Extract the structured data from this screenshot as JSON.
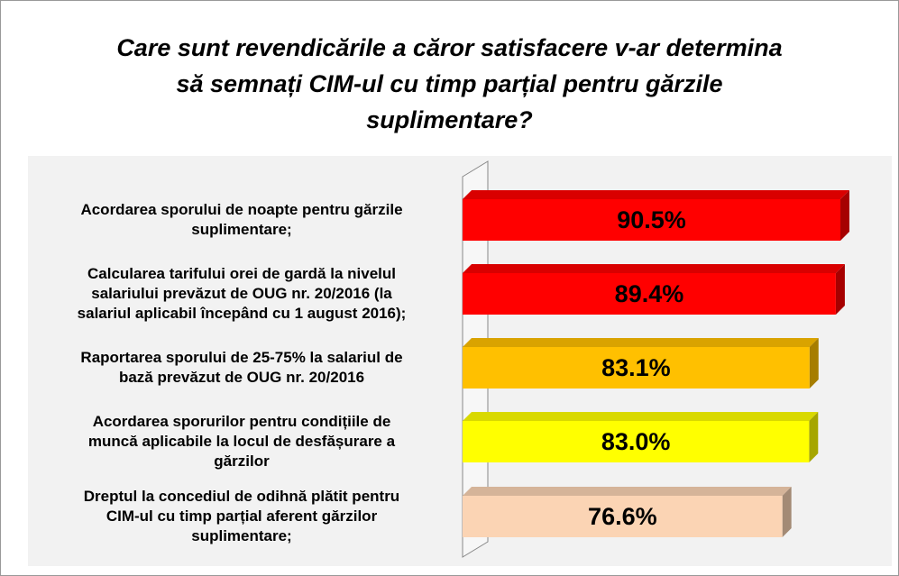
{
  "chart_data": {
    "type": "bar",
    "orientation": "horizontal",
    "title": "Care sunt revendicările a căror satisfacere v-ar determina\nsă semnați CIM-ul cu timp parțial pentru gărzile\nsuplimentare?",
    "categories": [
      "Acordarea sporului de noapte pentru gărzile\nsuplimentare;",
      "Calcularea tarifului orei de gardă la nivelul\nsalariului prevăzut de OUG nr. 20/2016 (la\nsalariul aplicabil începând cu 1 august 2016);",
      "Raportarea sporului de 25-75% la salariul de\nbază prevăzut de  OUG nr. 20/2016",
      "Acordarea sporurilor pentru condițiile de\nmuncă aplicabile la locul de desfășurare a\ngărzilor",
      "Dreptul la concediul de odihnă plătit  pentru\nCIM-ul cu timp parțial aferent gărzilor\nsuplimentare;"
    ],
    "values": [
      90.5,
      89.4,
      83.1,
      83.0,
      76.6
    ],
    "value_labels": [
      "90.5%",
      "89.4%",
      "83.1%",
      "83.0%",
      "76.6%"
    ],
    "colors": [
      "#ff0000",
      "#ff0000",
      "#ffc000",
      "#ffff00",
      "#fbd4b4"
    ],
    "xlim": [
      0,
      100
    ]
  }
}
